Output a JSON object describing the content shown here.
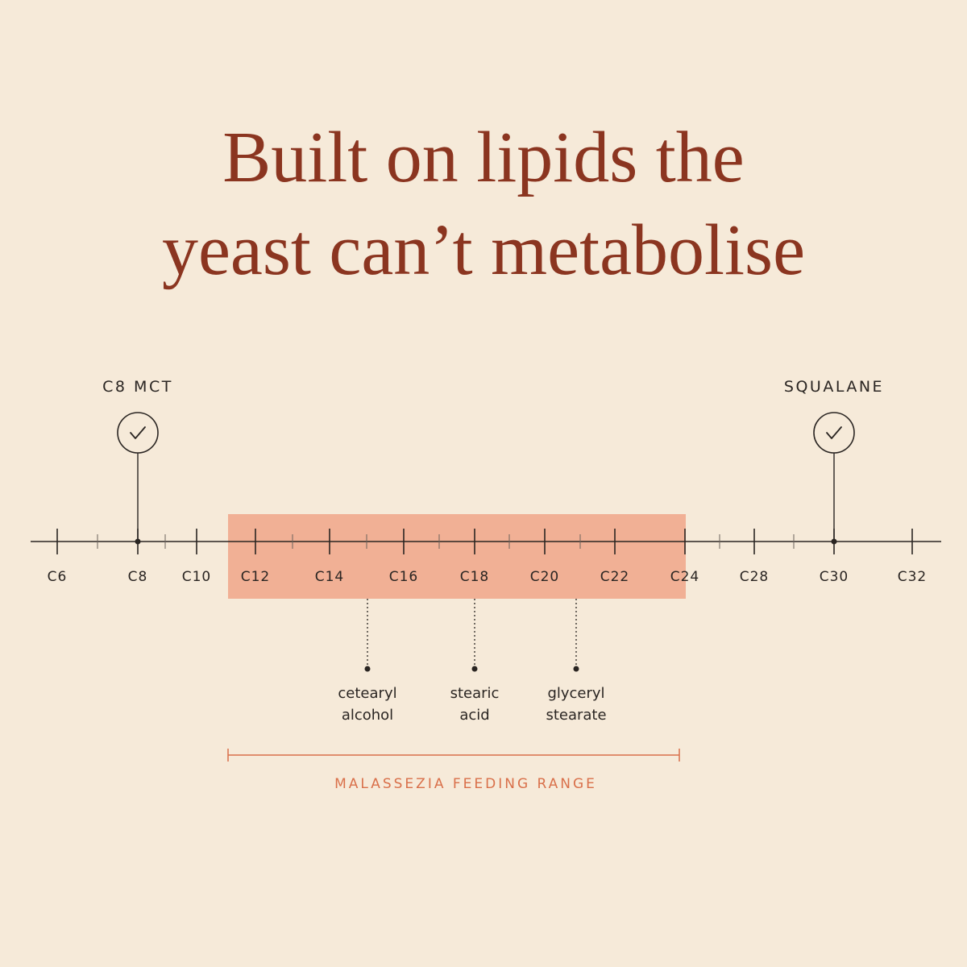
{
  "title": {
    "lines": [
      "Built on lipids the",
      "yeast can’t metabolise"
    ]
  },
  "axis": {
    "ticks": [
      "C6",
      "C8",
      "C10",
      "C12",
      "C14",
      "C16",
      "C18",
      "C20",
      "C22",
      "C24",
      "C28",
      "C30",
      "C32"
    ]
  },
  "markers": [
    {
      "label": "C8 MCT"
    },
    {
      "label": "SQUALANE"
    }
  ],
  "ingredients": [
    {
      "lines": [
        "cetearyl",
        "alcohol"
      ]
    },
    {
      "lines": [
        "stearic",
        "acid"
      ]
    },
    {
      "lines": [
        "glyceryl",
        "stearate"
      ]
    }
  ],
  "range": {
    "label": "MALASSEZIA FEEDING RANGE"
  }
}
